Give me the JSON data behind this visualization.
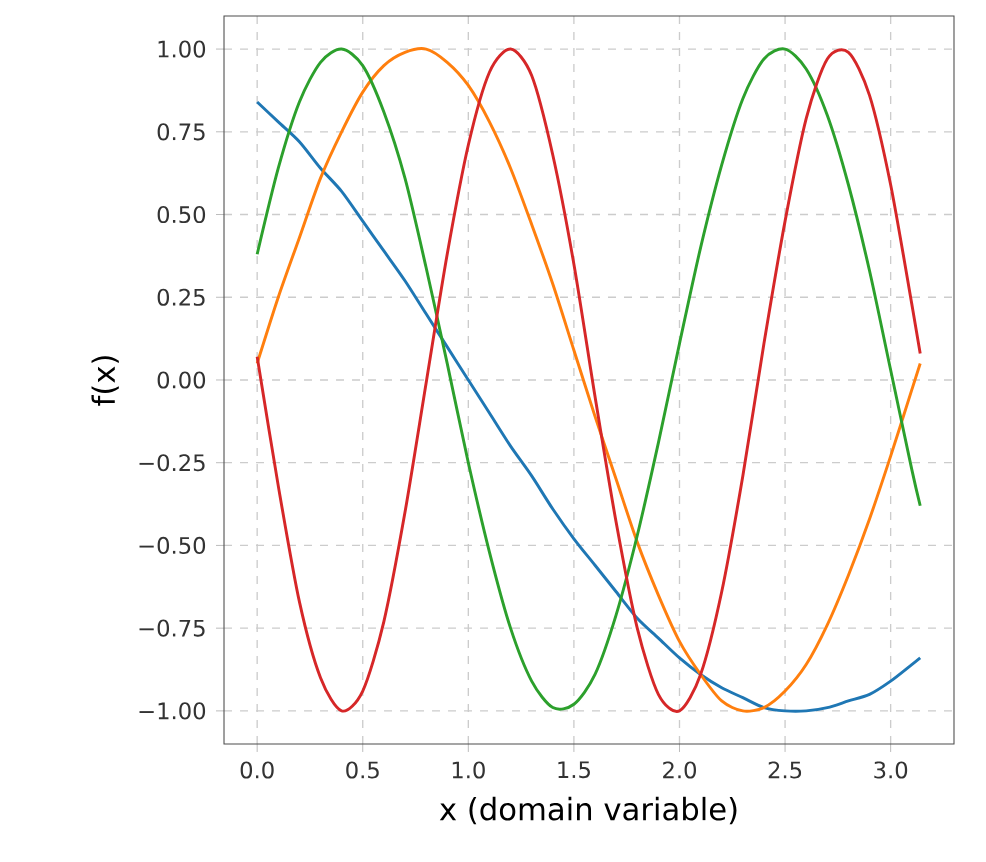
{
  "chart_data": {
    "type": "line",
    "xlabel": "x (domain variable)",
    "ylabel": "f(x)",
    "x": [
      0,
      0.1,
      0.2,
      0.3,
      0.4,
      0.5,
      0.6,
      0.7,
      0.8,
      0.9,
      1.0,
      1.1,
      1.2,
      1.3,
      1.4,
      1.5,
      1.6,
      1.7,
      1.8,
      1.9,
      2.0,
      2.1,
      2.2,
      2.3,
      2.4,
      2.5,
      2.6,
      2.7,
      2.8,
      2.9,
      3.0,
      3.1,
      3.14
    ],
    "series": [
      {
        "color": "#1f77b4",
        "values": [
          0.84,
          0.78,
          0.72,
          0.64,
          0.57,
          0.48,
          0.39,
          0.3,
          0.2,
          0.1,
          0.0,
          -0.1,
          -0.2,
          -0.29,
          -0.39,
          -0.48,
          -0.56,
          -0.64,
          -0.72,
          -0.78,
          -0.84,
          -0.89,
          -0.93,
          -0.96,
          -0.99,
          -1.0,
          -1.0,
          -0.99,
          -0.97,
          -0.95,
          -0.91,
          -0.86,
          -0.84
        ]
      },
      {
        "color": "#ff7f0e",
        "values": [
          0.05,
          0.25,
          0.43,
          0.61,
          0.75,
          0.87,
          0.95,
          0.99,
          1.0,
          0.96,
          0.89,
          0.78,
          0.64,
          0.47,
          0.29,
          0.09,
          -0.11,
          -0.3,
          -0.49,
          -0.65,
          -0.79,
          -0.89,
          -0.97,
          -1.0,
          -0.99,
          -0.94,
          -0.86,
          -0.74,
          -0.59,
          -0.42,
          -0.23,
          -0.03,
          0.05
        ]
      },
      {
        "color": "#2ca02c",
        "values": [
          0.38,
          0.64,
          0.84,
          0.96,
          1.0,
          0.95,
          0.81,
          0.61,
          0.34,
          0.05,
          -0.25,
          -0.52,
          -0.75,
          -0.91,
          -0.99,
          -0.98,
          -0.89,
          -0.71,
          -0.47,
          -0.19,
          0.11,
          0.4,
          0.65,
          0.85,
          0.97,
          1.0,
          0.94,
          0.8,
          0.59,
          0.33,
          0.03,
          -0.27,
          -0.38
        ]
      },
      {
        "color": "#d62728",
        "values": [
          0.07,
          -0.32,
          -0.67,
          -0.9,
          -1.0,
          -0.94,
          -0.73,
          -0.4,
          -0.01,
          0.38,
          0.71,
          0.93,
          1.0,
          0.92,
          0.68,
          0.35,
          -0.05,
          -0.43,
          -0.75,
          -0.95,
          -1.0,
          -0.89,
          -0.64,
          -0.29,
          0.11,
          0.48,
          0.79,
          0.97,
          0.99,
          0.86,
          0.59,
          0.23,
          0.08
        ]
      }
    ],
    "xlim": [
      -0.157,
      3.3
    ],
    "ylim": [
      -1.1,
      1.1
    ],
    "xticks": [
      {
        "value": 0,
        "label": "0.0"
      },
      {
        "value": 0.5,
        "label": "0.5"
      },
      {
        "value": 1,
        "label": "1.0"
      },
      {
        "value": 1.5,
        "label": "1.5"
      },
      {
        "value": 2,
        "label": "2.0"
      },
      {
        "value": 2.5,
        "label": "2.5"
      },
      {
        "value": 3,
        "label": "3.0"
      }
    ],
    "yticks": [
      {
        "value": -1,
        "label": "−1.00"
      },
      {
        "value": -0.75,
        "label": "−0.75"
      },
      {
        "value": -0.5,
        "label": "−0.50"
      },
      {
        "value": -0.25,
        "label": "−0.25"
      },
      {
        "value": 0,
        "label": "0.00"
      },
      {
        "value": 0.25,
        "label": "0.25"
      },
      {
        "value": 0.5,
        "label": "0.50"
      },
      {
        "value": 0.75,
        "label": "0.75"
      },
      {
        "value": 1,
        "label": "1.00"
      }
    ],
    "grid": true,
    "line_style": "solid",
    "marker": "none"
  }
}
